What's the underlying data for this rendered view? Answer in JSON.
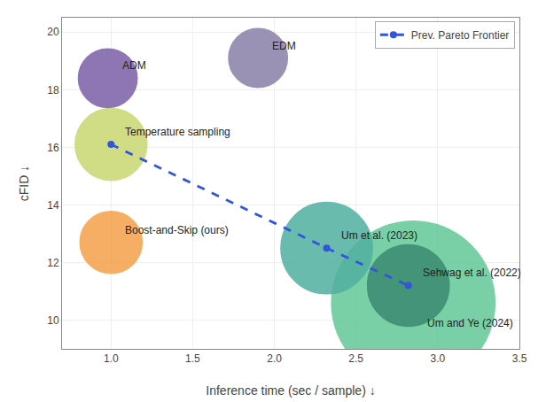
{
  "chart_data": {
    "type": "bubble",
    "x_label": "Inference time (sec / sample) ↓",
    "y_label": "cFID ↓",
    "xlim": [
      0.7,
      3.5
    ],
    "ylim": [
      9.0,
      20.5
    ],
    "xticks": [
      {
        "value": 1.0,
        "label": "1.0"
      },
      1.5,
      {
        "value": 2.0,
        "label": "2.0"
      },
      2.5,
      {
        "value": 3.0,
        "label": "3.0"
      },
      3.5
    ],
    "yticks": [
      10,
      12,
      14,
      16,
      18,
      20
    ],
    "grid": true,
    "legend": "upper right",
    "series": [
      {
        "type": "bubble",
        "labels": [
          "ADM",
          "EDM",
          "Temperature sampling",
          "Boost-and-Skip (ours)",
          "Um et al. (2023)",
          "Sehwag et al. (2022)",
          "Um and Ye (2024)"
        ],
        "x": [
          0.98,
          1.9,
          1.0,
          1.0,
          2.32,
          2.82,
          2.85
        ],
        "values": [
          18.4,
          19.1,
          16.1,
          12.7,
          12.5,
          11.2,
          10.6
        ],
        "radius": [
          0.18,
          0.18,
          0.22,
          0.19,
          0.28,
          0.25,
          0.5
        ],
        "colors": [
          "#7B5EA7",
          "#8880A8",
          "#C8D870",
          "#F5A04A",
          "#50B0A0",
          "#3A8A70",
          "#62C898"
        ]
      },
      {
        "type": "line",
        "name": "Prev. Pareto Frontier",
        "x": [
          1.0,
          2.32,
          2.82
        ],
        "values": [
          16.1,
          12.5,
          11.2
        ],
        "color": "#3355DD",
        "line_style": "dashed",
        "marker": "circle"
      }
    ]
  }
}
